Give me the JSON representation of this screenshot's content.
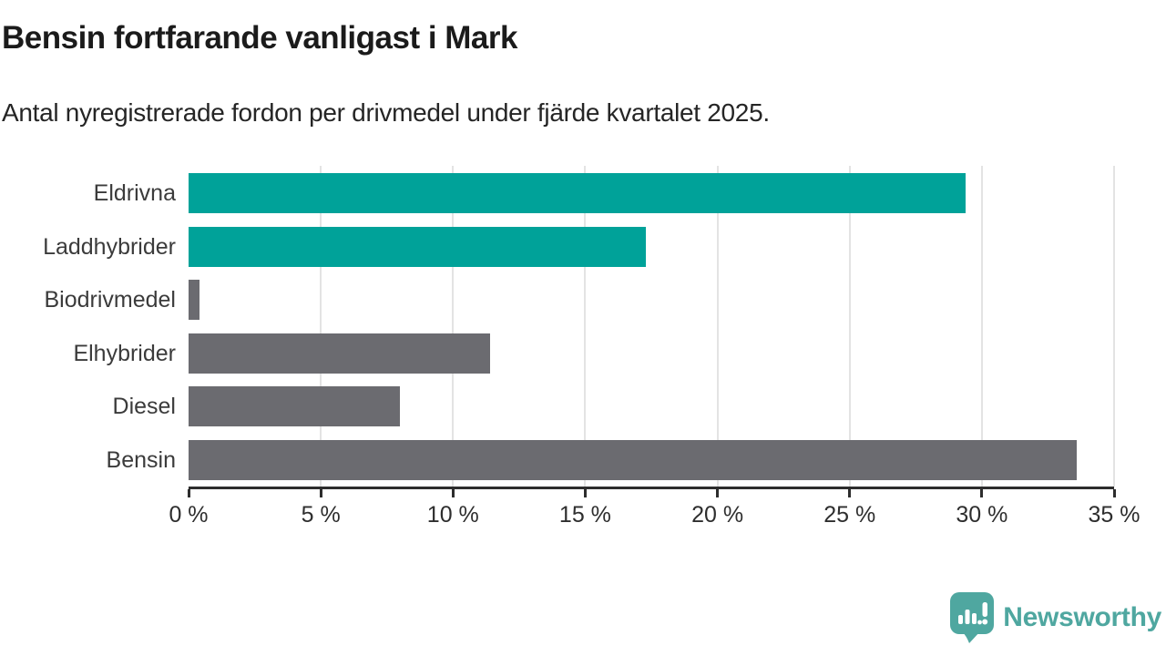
{
  "header": {
    "title": "Bensin fortfarande vanligast i Mark",
    "subtitle": "Antal nyregistrerade fordon per drivmedel under fjärde kvartalet 2025."
  },
  "chart_data": {
    "type": "bar",
    "orientation": "horizontal",
    "title": "Bensin fortfarande vanligast i Mark",
    "subtitle": "Antal nyregistrerade fordon per drivmedel under fjärde kvartalet 2025.",
    "categories": [
      "Eldrivna",
      "Laddhybrider",
      "Biodrivmedel",
      "Elhybrider",
      "Diesel",
      "Bensin"
    ],
    "values": [
      29.4,
      17.3,
      0.4,
      11.4,
      8.0,
      33.6
    ],
    "unit": "%",
    "bar_colors": [
      "#00a299",
      "#00a299",
      "#6b6b70",
      "#6b6b70",
      "#6b6b70",
      "#6b6b70"
    ],
    "highlight_color": "#00a299",
    "default_color": "#6b6b70",
    "xlim": [
      0,
      35
    ],
    "x_tick_values": [
      0,
      5,
      10,
      15,
      20,
      25,
      30,
      35
    ],
    "x_ticks": [
      "0 %",
      "5 %",
      "10 %",
      "15 %",
      "20 %",
      "25 %",
      "30 %",
      "35 %"
    ],
    "xlabel": "",
    "ylabel": "",
    "grid": "vertical",
    "gridline_color": "#e3e3e3",
    "axis_color": "#2d2d2d",
    "legend": "none"
  },
  "footer": {
    "brand": "Newsworthy",
    "brand_color": "#4fa7a0"
  }
}
